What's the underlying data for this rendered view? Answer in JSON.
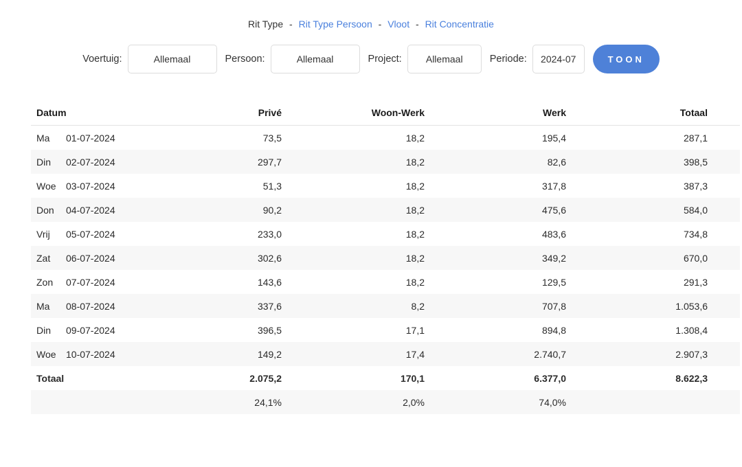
{
  "nav": {
    "separator": "-",
    "items": [
      {
        "label": "Rit Type",
        "active": true
      },
      {
        "label": "Rit Type Persoon",
        "active": false
      },
      {
        "label": "Vloot",
        "active": false
      },
      {
        "label": "Rit Concentratie",
        "active": false
      }
    ]
  },
  "filters": {
    "voertuig_label": "Voertuig:",
    "voertuig_value": "Allemaal",
    "persoon_label": "Persoon:",
    "persoon_value": "Allemaal",
    "project_label": "Project:",
    "project_value": "Allemaal",
    "periode_label": "Periode:",
    "periode_value": "2024-07",
    "submit_label": "TOON"
  },
  "table": {
    "headers": {
      "datum": "Datum",
      "prive": "Privé",
      "woonwerk": "Woon-Werk",
      "werk": "Werk",
      "totaal": "Totaal"
    },
    "rows": [
      {
        "day": "Ma",
        "date": "01-07-2024",
        "prive": "73,5",
        "woonwerk": "18,2",
        "werk": "195,4",
        "totaal": "287,1"
      },
      {
        "day": "Din",
        "date": "02-07-2024",
        "prive": "297,7",
        "woonwerk": "18,2",
        "werk": "82,6",
        "totaal": "398,5"
      },
      {
        "day": "Woe",
        "date": "03-07-2024",
        "prive": "51,3",
        "woonwerk": "18,2",
        "werk": "317,8",
        "totaal": "387,3"
      },
      {
        "day": "Don",
        "date": "04-07-2024",
        "prive": "90,2",
        "woonwerk": "18,2",
        "werk": "475,6",
        "totaal": "584,0"
      },
      {
        "day": "Vrij",
        "date": "05-07-2024",
        "prive": "233,0",
        "woonwerk": "18,2",
        "werk": "483,6",
        "totaal": "734,8"
      },
      {
        "day": "Zat",
        "date": "06-07-2024",
        "prive": "302,6",
        "woonwerk": "18,2",
        "werk": "349,2",
        "totaal": "670,0"
      },
      {
        "day": "Zon",
        "date": "07-07-2024",
        "prive": "143,6",
        "woonwerk": "18,2",
        "werk": "129,5",
        "totaal": "291,3"
      },
      {
        "day": "Ma",
        "date": "08-07-2024",
        "prive": "337,6",
        "woonwerk": "8,2",
        "werk": "707,8",
        "totaal": "1.053,6"
      },
      {
        "day": "Din",
        "date": "09-07-2024",
        "prive": "396,5",
        "woonwerk": "17,1",
        "werk": "894,8",
        "totaal": "1.308,4"
      },
      {
        "day": "Woe",
        "date": "10-07-2024",
        "prive": "149,2",
        "woonwerk": "17,4",
        "werk": "2.740,7",
        "totaal": "2.907,3"
      }
    ],
    "total_row": {
      "label": "Totaal",
      "prive": "2.075,2",
      "woonwerk": "170,1",
      "werk": "6.377,0",
      "totaal": "8.622,3"
    },
    "percent_row": {
      "prive": "24,1%",
      "woonwerk": "2,0%",
      "werk": "74,0%",
      "totaal": ""
    }
  },
  "colors": {
    "accent": "#4e81d8",
    "link": "#4a80dd",
    "stripe": "#f7f7f7"
  }
}
